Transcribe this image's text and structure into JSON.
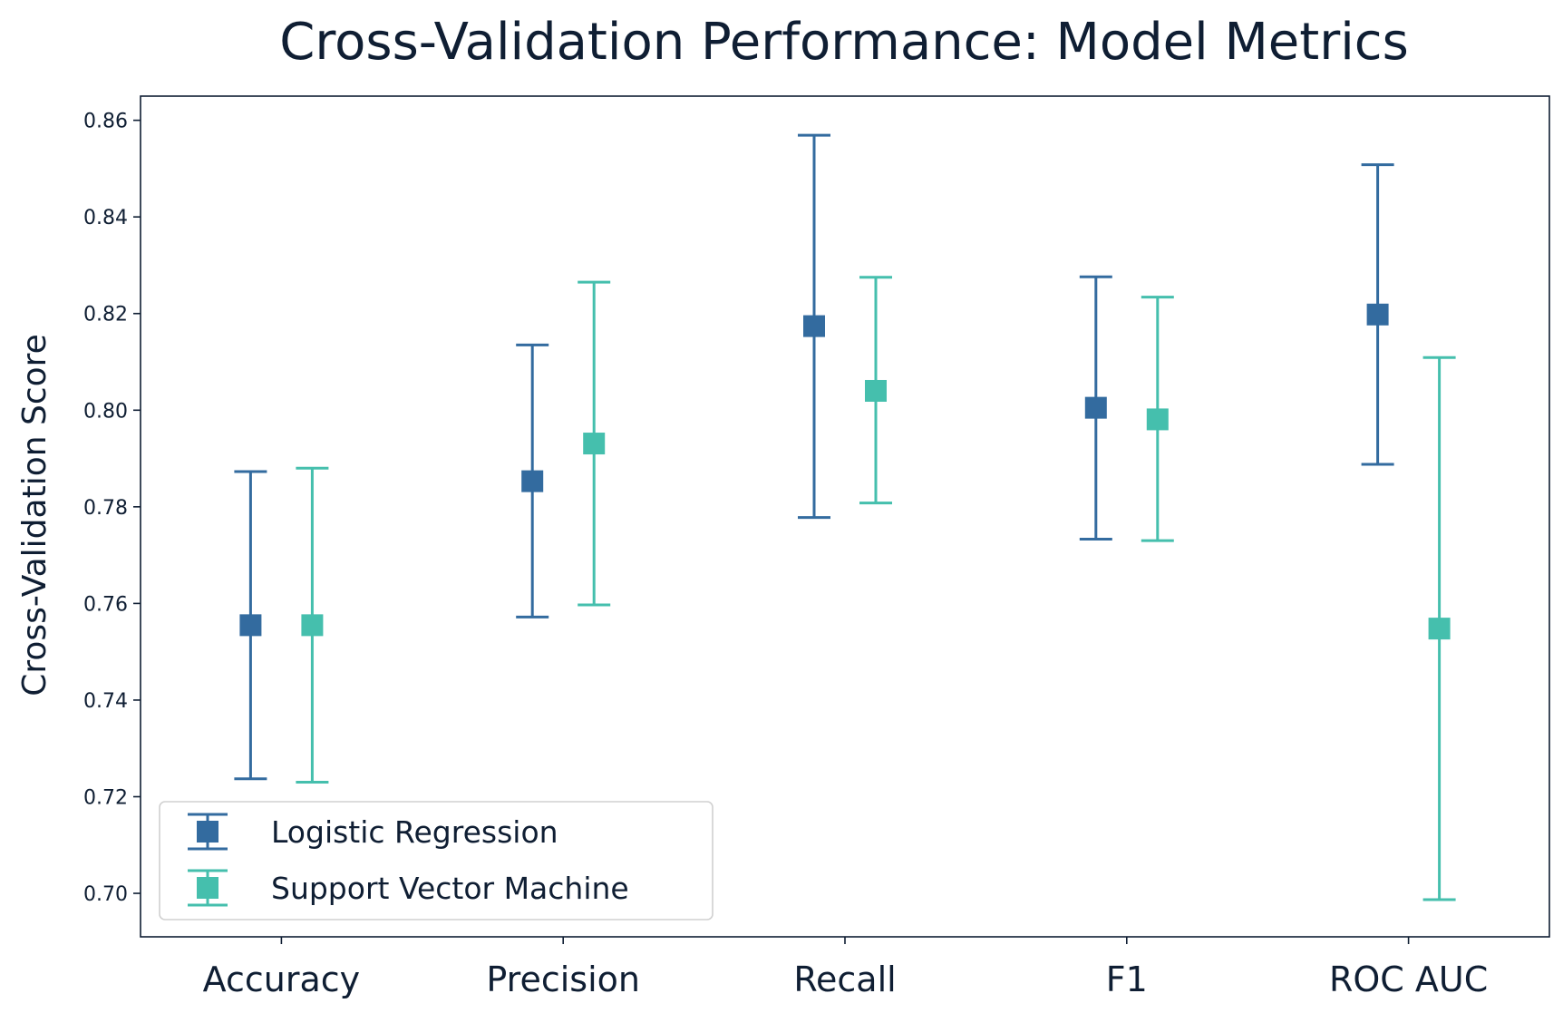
{
  "chart_data": {
    "type": "scatter",
    "title": "Cross-Validation Performance: Model Metrics",
    "xlabel": "",
    "ylabel": "Cross-Validation Score",
    "categories": [
      "Accuracy",
      "Precision",
      "Recall",
      "F1",
      "ROC AUC"
    ],
    "ylim": [
      0.691,
      0.865
    ],
    "yticks": [
      "0.70",
      "0.72",
      "0.74",
      "0.76",
      "0.78",
      "0.80",
      "0.82",
      "0.84",
      "0.86"
    ],
    "grid": false,
    "legend_position": "lower-left",
    "series": [
      {
        "name": "Logistic Regression",
        "color": "#336b9f",
        "marker": "square",
        "values": [
          0.7555,
          0.7853,
          0.8174,
          0.8005,
          0.8198
        ],
        "error_low": [
          0.7237,
          0.7572,
          0.7778,
          0.7733,
          0.7888
        ],
        "error_high": [
          0.7873,
          0.8135,
          0.8569,
          0.8276,
          0.8508
        ]
      },
      {
        "name": "Support Vector Machine",
        "color": "#45bfad",
        "marker": "square",
        "values": [
          0.7555,
          0.7931,
          0.804,
          0.7981,
          0.7548
        ],
        "error_low": [
          0.723,
          0.7597,
          0.7808,
          0.773,
          0.6987
        ],
        "error_high": [
          0.788,
          0.8265,
          0.8275,
          0.8234,
          0.8109
        ]
      }
    ]
  }
}
